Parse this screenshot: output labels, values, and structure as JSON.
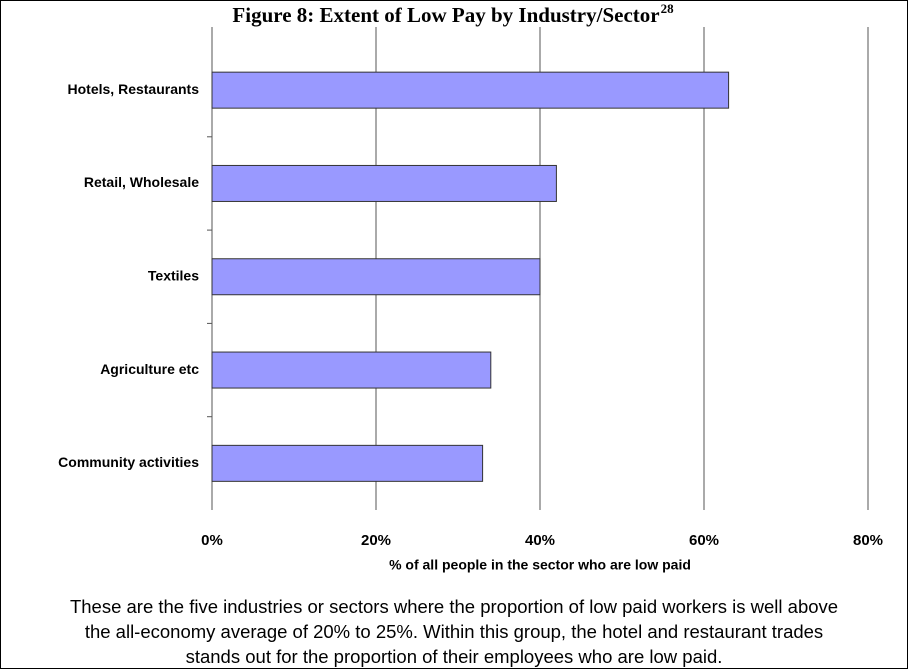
{
  "chart_data": {
    "type": "bar",
    "orientation": "horizontal",
    "title": "Figure 8: Extent of Low Pay by Industry/Sector",
    "title_superscript": "28",
    "categories": [
      "Hotels, Restaurants",
      "Retail, Wholesale",
      "Textiles",
      "Agriculture etc",
      "Community activities"
    ],
    "values": [
      63,
      42,
      40,
      34,
      33
    ],
    "color": "#9999ff",
    "xlim": [
      0,
      80
    ],
    "xticks": [
      {
        "value": 0,
        "label": "0%"
      },
      {
        "value": 20,
        "label": "20%"
      },
      {
        "value": 40,
        "label": "40%"
      },
      {
        "value": 60,
        "label": "60%"
      },
      {
        "value": 80,
        "label": "80%"
      }
    ],
    "xlabel": "% of all people in the sector who are low paid",
    "grid": true,
    "caption": [
      "These are the five industries or sectors where the proportion of low paid workers is well above",
      "the all-economy average of 20% to 25%.  Within this group, the hotel and restaurant trades",
      "stands out for the proportion of their employees who are low paid."
    ]
  }
}
